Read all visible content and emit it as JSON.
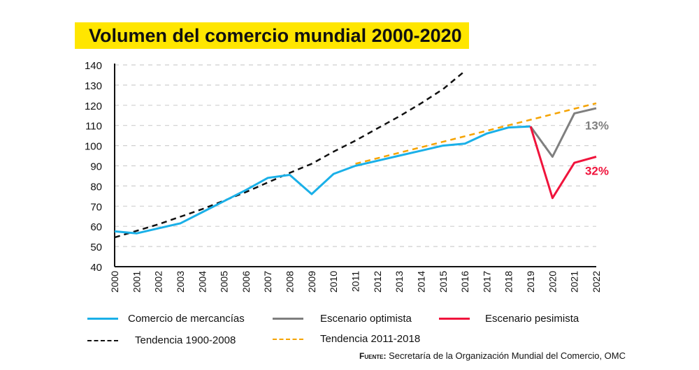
{
  "title": "Volumen del comercio mundial 2000-2020",
  "source_label": "Fuente:",
  "source_text": "Secretaría de la Organización Mundial del Comercio, OMC",
  "chart_data": {
    "type": "line",
    "title": "Volumen del comercio mundial 2000-2020",
    "ylim": [
      40,
      140
    ],
    "yticks": [
      40,
      50,
      60,
      70,
      80,
      90,
      100,
      110,
      120,
      130,
      140
    ],
    "xlim": [
      2000,
      2022
    ],
    "xticks": [
      2000,
      2001,
      2002,
      2003,
      2004,
      2005,
      2006,
      2007,
      2008,
      2009,
      2010,
      2011,
      2012,
      2013,
      2014,
      2015,
      2016,
      2017,
      2018,
      2019,
      2020,
      2021,
      2022
    ],
    "grid": true,
    "legend_placement": "bottom",
    "series": [
      {
        "name": "Comercio de mercancías",
        "color": "#1ab0e8",
        "dashed": false,
        "x": [
          2000,
          2001,
          2002,
          2003,
          2004,
          2005,
          2006,
          2007,
          2008,
          2009,
          2010,
          2011,
          2012,
          2013,
          2014,
          2015,
          2016,
          2017,
          2018,
          2019
        ],
        "y": [
          57.5,
          56.5,
          59,
          61.5,
          67,
          72.5,
          78,
          84,
          85.5,
          76,
          86,
          90,
          92.5,
          95,
          97.5,
          100,
          101,
          106,
          109,
          109.5
        ]
      },
      {
        "name": "Escenario optimista",
        "color": "#7f7f7f",
        "dashed": false,
        "x": [
          2019,
          2020,
          2021,
          2022
        ],
        "y": [
          109.5,
          94.5,
          116,
          118.5
        ]
      },
      {
        "name": "Escenario pesimista",
        "color": "#f0143c",
        "dashed": false,
        "x": [
          2019,
          2020,
          2021,
          2022
        ],
        "y": [
          109.5,
          74,
          91.5,
          94.5
        ]
      },
      {
        "name": "Tendencia 1900-2008",
        "color": "#111111",
        "dashed": true,
        "x": [
          2000,
          2002,
          2004,
          2006,
          2008,
          2009,
          2010,
          2011,
          2012,
          2013,
          2014,
          2015,
          2016
        ],
        "y": [
          54.5,
          61,
          68.5,
          77,
          86.5,
          91,
          97,
          102.5,
          108.5,
          114.5,
          121,
          128,
          137
        ]
      },
      {
        "name": "Tendencia 2011-2018",
        "color": "#f5a300",
        "dashed": true,
        "x": [
          2011,
          2022
        ],
        "y": [
          91,
          121
        ]
      }
    ],
    "annotations": [
      {
        "text": "13%",
        "x": 2022,
        "y": 110,
        "color": "#7f7f7f"
      },
      {
        "text": "32%",
        "x": 2022,
        "y": 87.5,
        "color": "#f0143c"
      }
    ]
  }
}
